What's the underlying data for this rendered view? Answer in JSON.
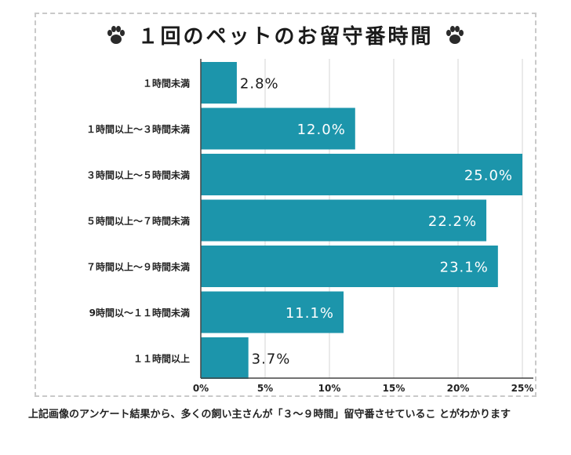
{
  "title": "１回のペットのお留守番時間",
  "caption": "上記画像のアンケート結果から、多くの飼い主さんが「３〜９時間」留守番させているこ とがわかります",
  "colors": {
    "bar": "#1c95ab",
    "axis": "#444444",
    "grid": "#d4d4d4",
    "frame": "#c9c9c9"
  },
  "icons": [
    "paw-icon"
  ],
  "chart_data": {
    "type": "bar",
    "orientation": "horizontal",
    "title": "１回のペットのお留守番時間",
    "categories": [
      "１時間未満",
      "１時間以上〜３時間未満",
      "３時間以上〜５時間未満",
      "５時間以上〜７時間未満",
      "７時間以上〜９時間未満",
      "9時間以〜１１時間未満",
      "１１時間以上"
    ],
    "values": [
      2.8,
      12.0,
      25.0,
      22.2,
      23.1,
      11.1,
      3.7
    ],
    "value_labels": [
      "2.8%",
      "12.0%",
      "25.0%",
      "22.2%",
      "23.1%",
      "11.1%",
      "3.7%"
    ],
    "xlim": [
      0,
      25
    ],
    "xticks": [
      0,
      5,
      10,
      15,
      20,
      25
    ],
    "xtick_labels": [
      "0%",
      "5%",
      "10%",
      "15%",
      "20%",
      "25%"
    ],
    "grid": true
  }
}
